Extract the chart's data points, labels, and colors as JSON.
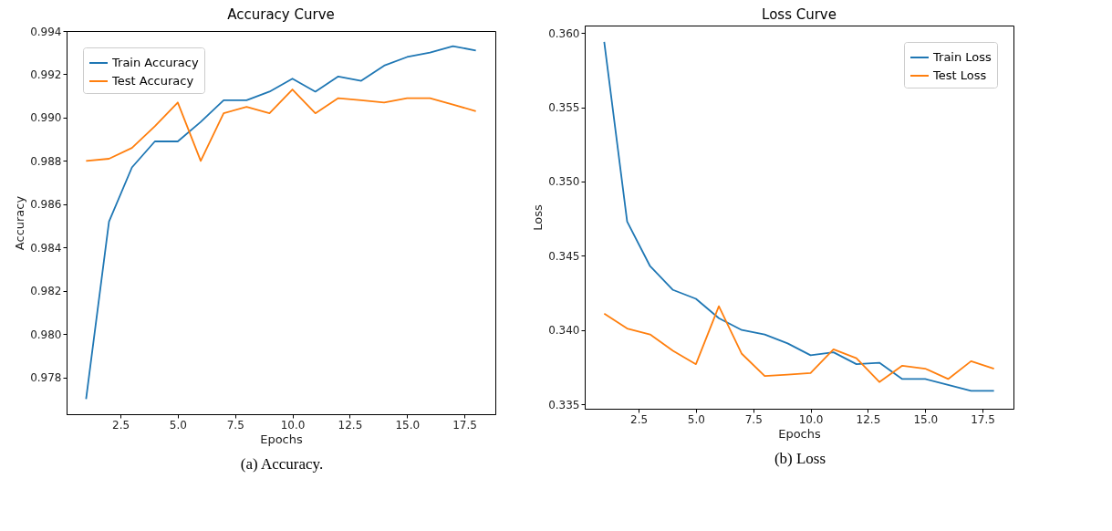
{
  "chart_data": [
    {
      "type": "line",
      "title": "Accuracy Curve",
      "xlabel": "Epochs",
      "ylabel": "Accuracy",
      "x": [
        1,
        2,
        3,
        4,
        5,
        6,
        7,
        8,
        9,
        10,
        11,
        12,
        13,
        14,
        15,
        16,
        17,
        18
      ],
      "series": [
        {
          "name": "Train Accuracy",
          "color": "#1f77b4",
          "values": [
            0.977,
            0.9852,
            0.9877,
            0.9889,
            0.9889,
            0.9898,
            0.9908,
            0.9908,
            0.9912,
            0.9918,
            0.9912,
            0.9919,
            0.9917,
            0.9924,
            0.9928,
            0.993,
            0.9933,
            0.9931
          ]
        },
        {
          "name": "Test Accuracy",
          "color": "#ff7f0e",
          "values": [
            0.988,
            0.9881,
            0.9886,
            0.9896,
            0.9907,
            0.988,
            0.9902,
            0.9905,
            0.9902,
            0.9913,
            0.9902,
            0.9909,
            0.9908,
            0.9907,
            0.9909,
            0.9909,
            0.9906,
            0.9903
          ]
        }
      ],
      "xlim": [
        0.15,
        18.85
      ],
      "xticks": [
        {
          "value": 2.5,
          "label": "2.5"
        },
        {
          "value": 5,
          "label": "5.0"
        },
        {
          "value": 7.5,
          "label": "7.5"
        },
        {
          "value": 10,
          "label": "10.0"
        },
        {
          "value": 12.5,
          "label": "12.5"
        },
        {
          "value": 15,
          "label": "15.0"
        },
        {
          "value": 17.5,
          "label": "17.5"
        }
      ],
      "ylim": [
        0.9763,
        0.994
      ],
      "yticks": [
        0.978,
        {
          "value": 0.98,
          "label": "0.980"
        },
        0.982,
        0.984,
        0.986,
        0.988,
        {
          "value": 0.99,
          "label": "0.990"
        },
        0.992,
        0.994
      ],
      "grid": false,
      "legend": "top left",
      "marker": "none",
      "line_style": "solid",
      "annotations": [
        "(a) Accuracy."
      ]
    },
    {
      "type": "line",
      "title": "Loss Curve",
      "xlabel": "Epochs",
      "ylabel": "Loss",
      "x": [
        1,
        2,
        3,
        4,
        5,
        6,
        7,
        8,
        9,
        10,
        11,
        12,
        13,
        14,
        15,
        16,
        17,
        18
      ],
      "series": [
        {
          "name": "Train Loss",
          "color": "#1f77b4",
          "values": [
            0.3594,
            0.3473,
            0.3443,
            0.3427,
            0.3421,
            0.3408,
            0.34,
            0.3397,
            0.3391,
            0.3383,
            0.3385,
            0.3377,
            0.3378,
            0.3367,
            0.3367,
            0.3363,
            0.3359,
            0.3359
          ]
        },
        {
          "name": "Test Loss",
          "color": "#ff7f0e",
          "values": [
            0.3411,
            0.3401,
            0.3397,
            0.3386,
            0.3377,
            0.3416,
            0.3384,
            0.3369,
            0.337,
            0.3371,
            0.3387,
            0.3381,
            0.3365,
            0.3376,
            0.3374,
            0.3367,
            0.3379,
            0.3374
          ]
        }
      ],
      "xlim": [
        0.15,
        18.85
      ],
      "xticks": [
        {
          "value": 2.5,
          "label": "2.5"
        },
        {
          "value": 5,
          "label": "5.0"
        },
        {
          "value": 7.5,
          "label": "7.5"
        },
        {
          "value": 10,
          "label": "10.0"
        },
        {
          "value": 12.5,
          "label": "12.5"
        },
        {
          "value": 15,
          "label": "15.0"
        },
        {
          "value": 17.5,
          "label": "17.5"
        }
      ],
      "ylim": [
        0.3347,
        0.3605
      ],
      "yticks": [
        0.335,
        {
          "value": 0.34,
          "label": "0.340"
        },
        0.345,
        {
          "value": 0.35,
          "label": "0.350"
        },
        0.355,
        {
          "value": 0.36,
          "label": "0.360"
        }
      ],
      "grid": false,
      "legend": "top right",
      "marker": "none",
      "line_style": "solid",
      "annotations": [
        "(b) Loss"
      ]
    }
  ]
}
